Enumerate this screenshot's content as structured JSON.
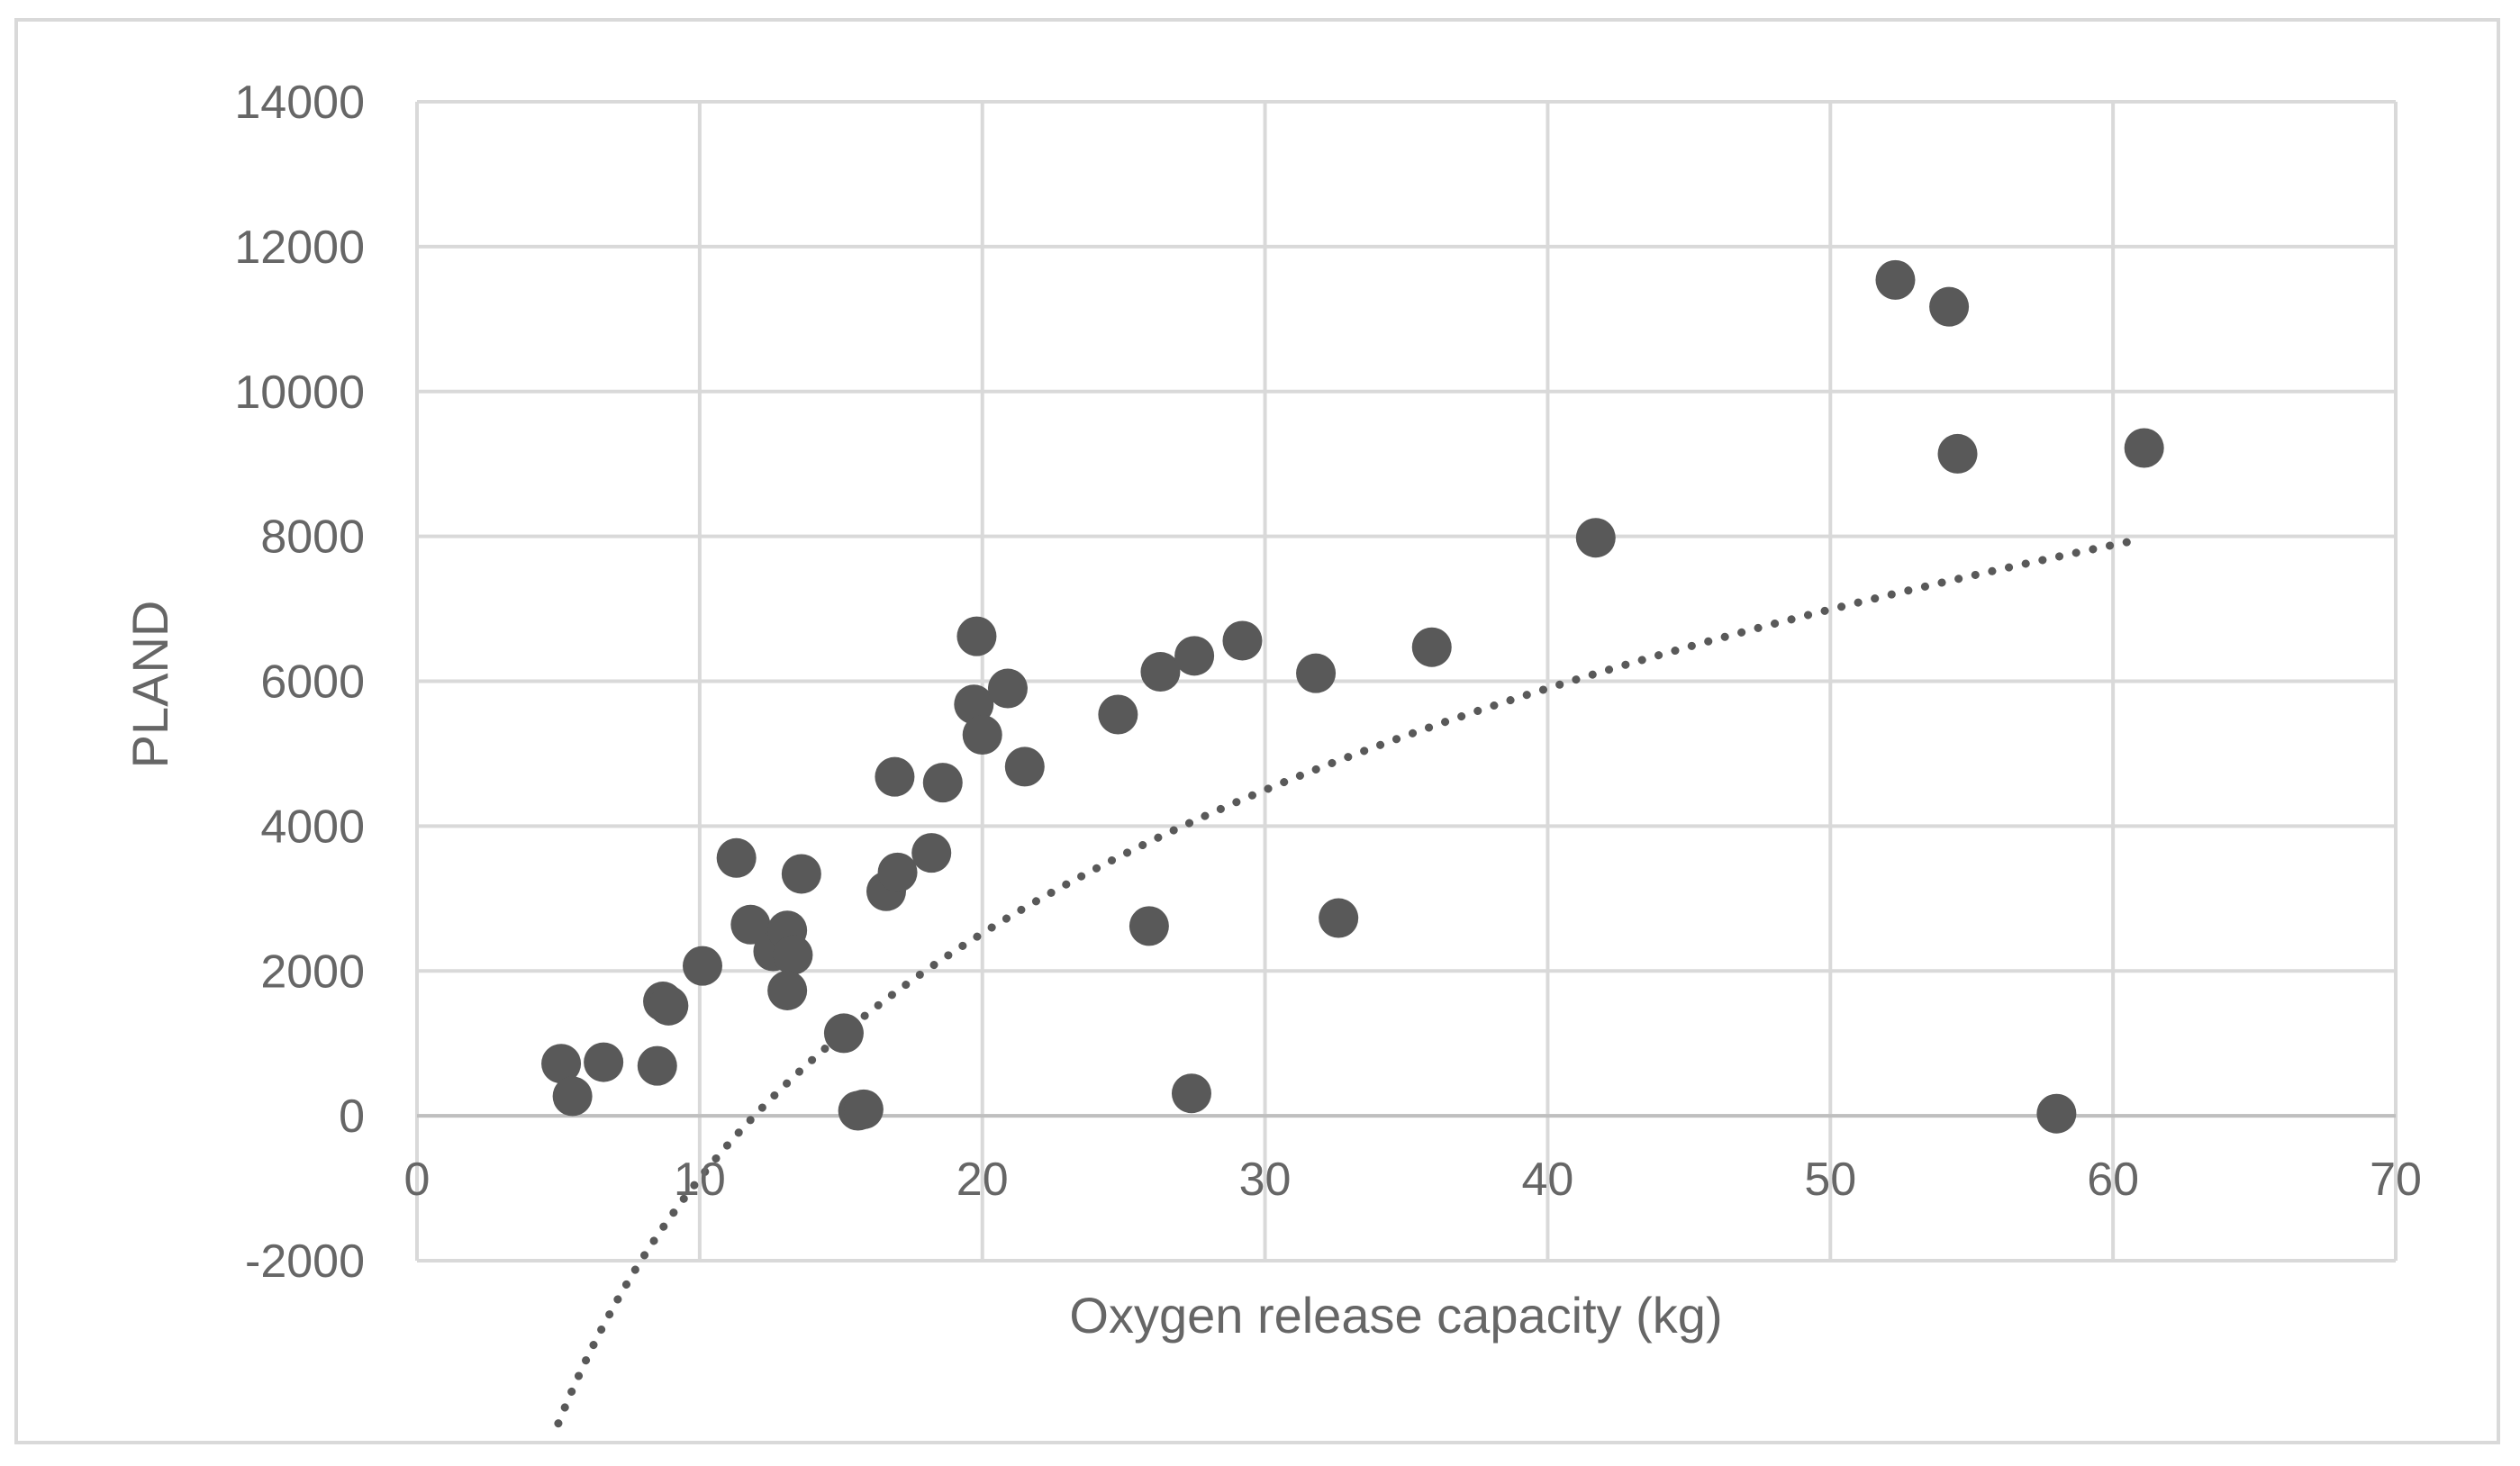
{
  "chart_data": {
    "type": "scatter",
    "title": "",
    "xlabel": "Oxygen release capacity (kg)",
    "ylabel": "PLAND",
    "xlim": [
      0,
      70
    ],
    "ylim": [
      -2000,
      14000
    ],
    "xticks": [
      0,
      10,
      20,
      30,
      40,
      50,
      60,
      70
    ],
    "yticks": [
      -2000,
      0,
      2000,
      4000,
      6000,
      8000,
      10000,
      12000,
      14000
    ],
    "grid": true,
    "legend": "none",
    "colors": {
      "marker": "#595959",
      "grid": "#d9d9d9",
      "trendline": "#595959",
      "text": "#666666"
    },
    "series": [
      {
        "name": "PLAND",
        "points": [
          [
            5.1,
            720
          ],
          [
            5.5,
            270
          ],
          [
            6.6,
            740
          ],
          [
            8.5,
            690
          ],
          [
            8.7,
            1580
          ],
          [
            8.9,
            1520
          ],
          [
            10.1,
            2070
          ],
          [
            11.3,
            3560
          ],
          [
            11.8,
            2640
          ],
          [
            12.6,
            2270
          ],
          [
            13.1,
            2560
          ],
          [
            13.3,
            2220
          ],
          [
            13.1,
            1730
          ],
          [
            13.6,
            3340
          ],
          [
            15.1,
            1140
          ],
          [
            15.6,
            70
          ],
          [
            15.8,
            90
          ],
          [
            16.6,
            3100
          ],
          [
            17.0,
            3360
          ],
          [
            16.9,
            4680
          ],
          [
            18.2,
            3630
          ],
          [
            18.6,
            4600
          ],
          [
            19.7,
            5680
          ],
          [
            19.8,
            6620
          ],
          [
            20.0,
            5260
          ],
          [
            20.9,
            5900
          ],
          [
            21.5,
            4820
          ],
          [
            24.8,
            5540
          ],
          [
            25.9,
            2620
          ],
          [
            26.3,
            6130
          ],
          [
            27.5,
            6350
          ],
          [
            27.4,
            310
          ],
          [
            29.2,
            6560
          ],
          [
            31.8,
            6110
          ],
          [
            32.6,
            2730
          ],
          [
            35.9,
            6470
          ],
          [
            41.7,
            7980
          ],
          [
            52.3,
            11540
          ],
          [
            54.2,
            11170
          ],
          [
            54.5,
            9140
          ],
          [
            58.0,
            30
          ],
          [
            61.1,
            9220
          ]
        ]
      }
    ],
    "trendline": {
      "type": "logarithmic",
      "equation": "y = 4880 * ln(x) - 12100",
      "x_range": [
        5,
        61
      ],
      "a": 4880,
      "b": -12100
    }
  }
}
